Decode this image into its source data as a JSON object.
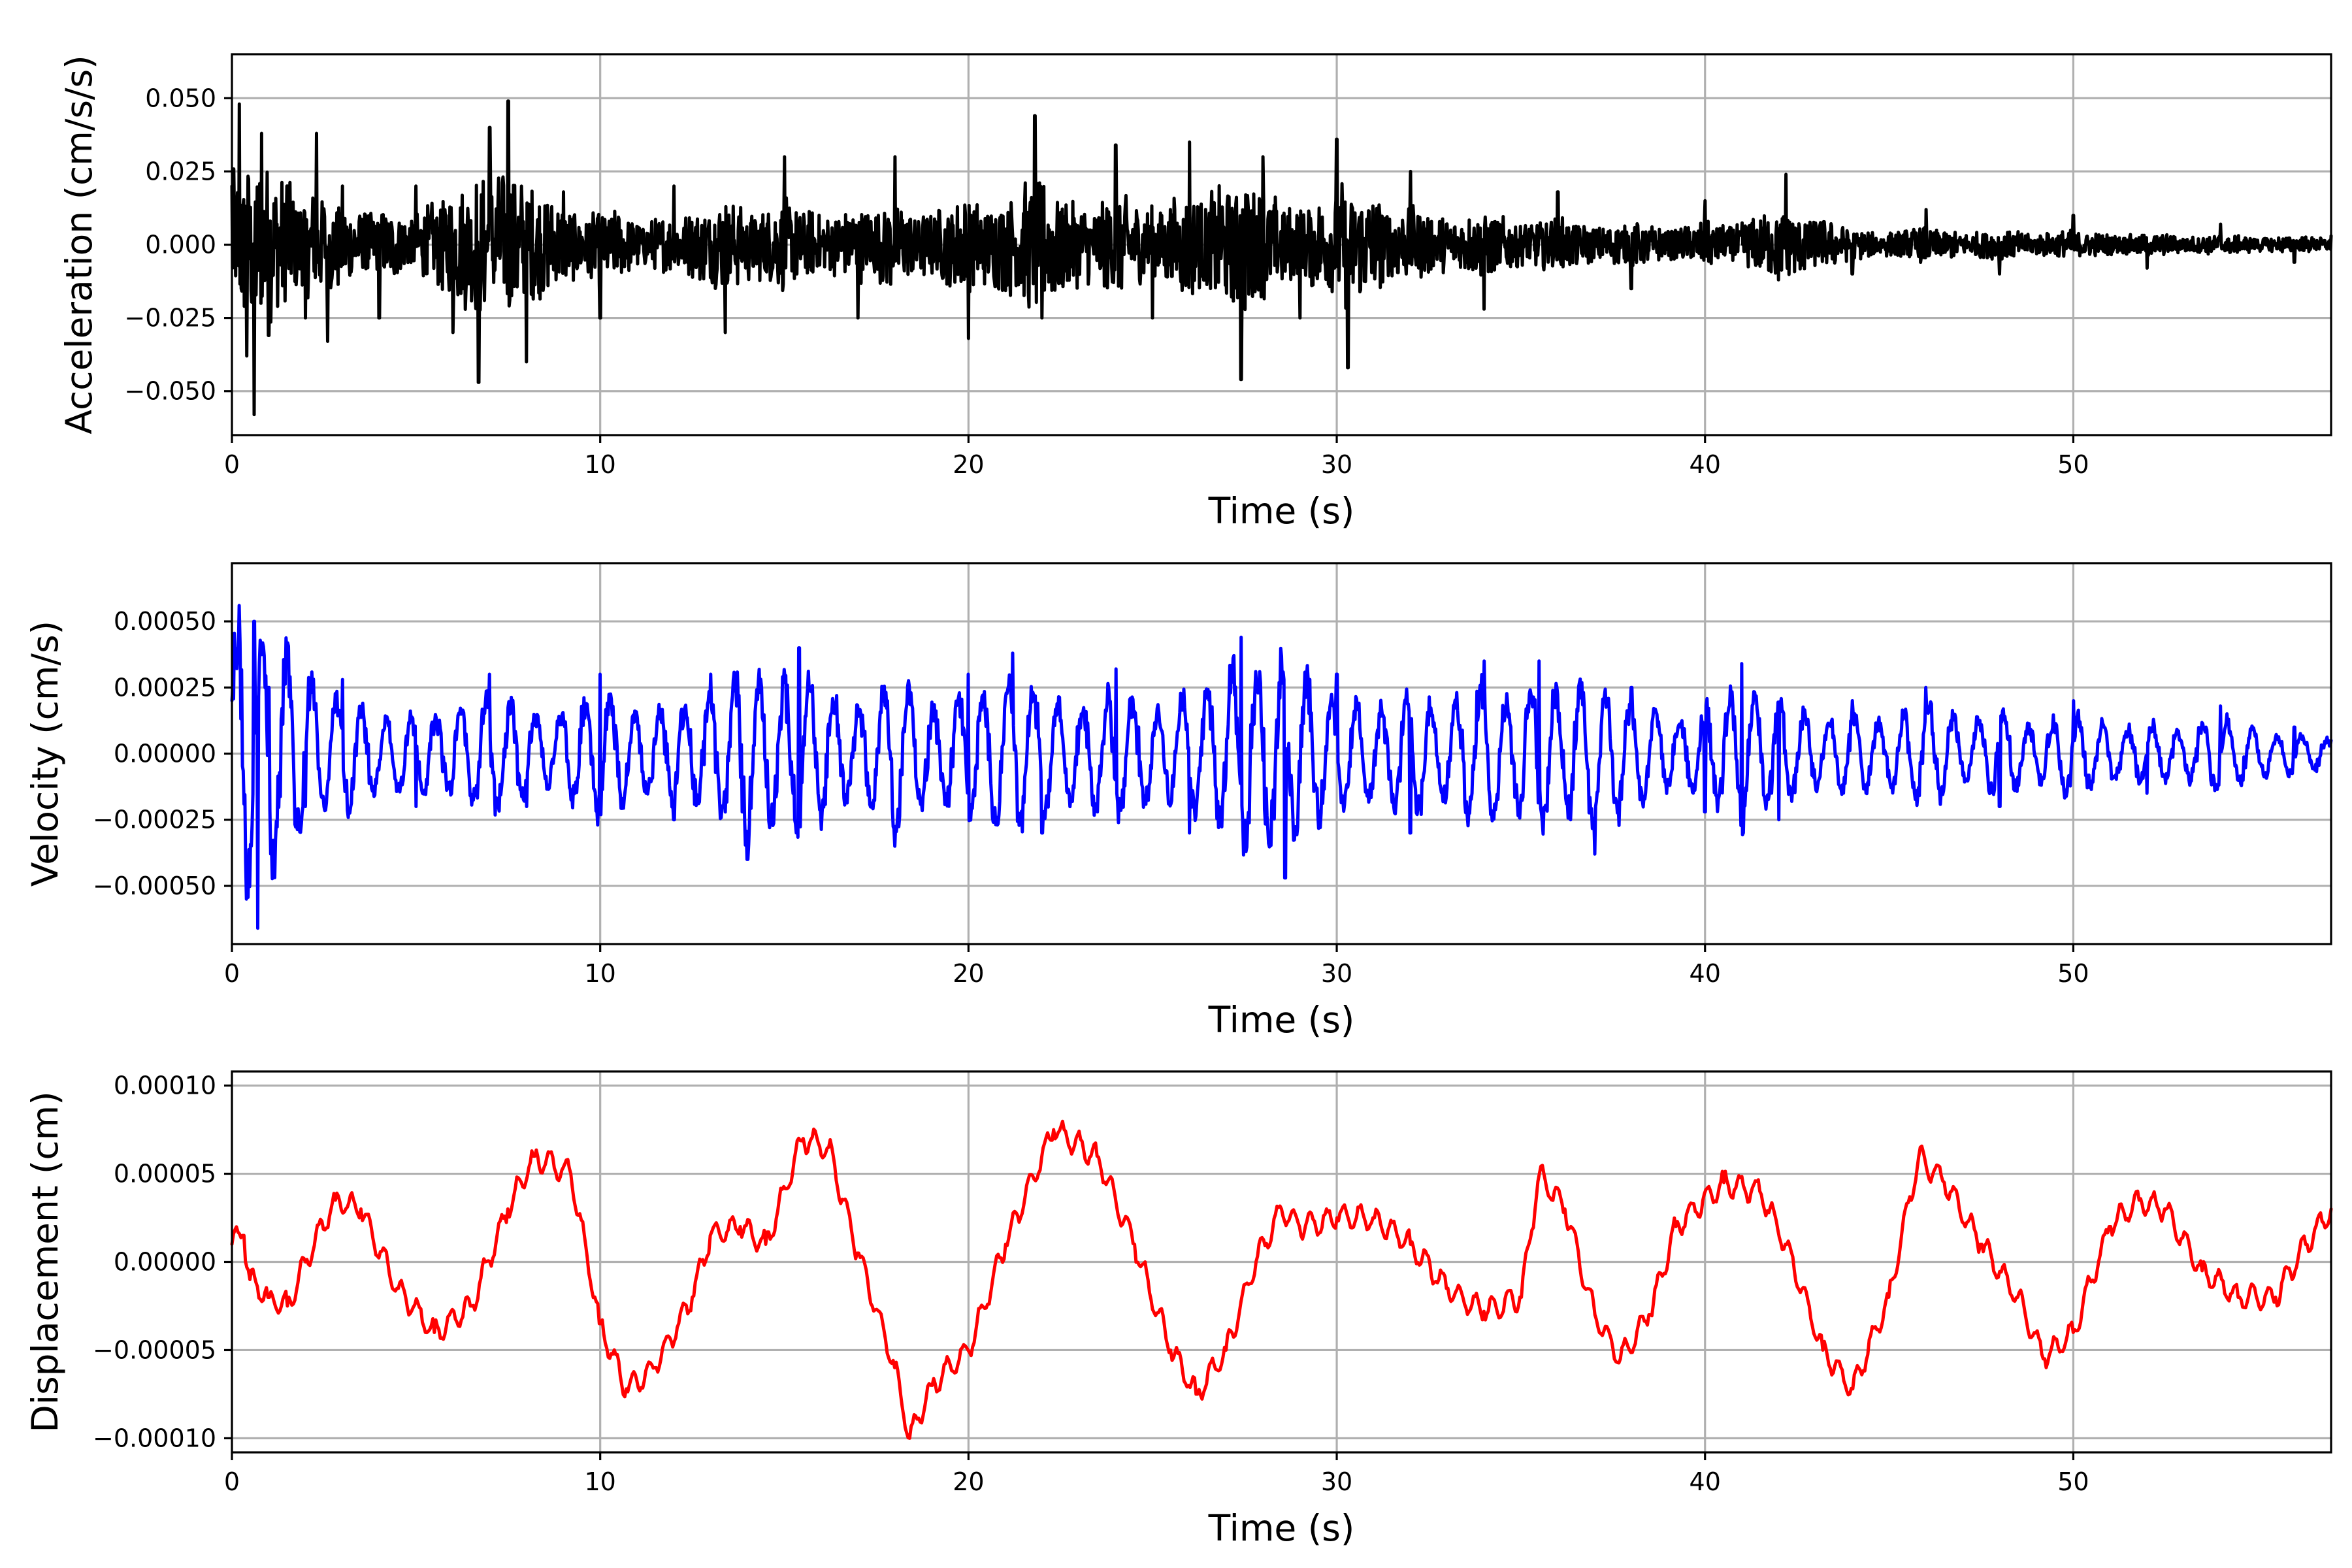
{
  "chart_data": [
    {
      "type": "line",
      "xlabel": "Time (s)",
      "ylabel": "Acceleration (cm/s/s)",
      "xlim": [
        0,
        57
      ],
      "ylim": [
        -0.065,
        0.065
      ],
      "xticks": [
        0,
        10,
        20,
        30,
        40,
        50
      ],
      "xtick_labels": [
        "0",
        "10",
        "20",
        "30",
        "40",
        "50"
      ],
      "yticks": [
        0.05,
        0.025,
        0.0,
        -0.025,
        -0.05
      ],
      "ytick_labels": [
        "0.050",
        "0.025",
        "0.000",
        "−0.025",
        "−0.050"
      ],
      "grid": true,
      "color": "#000000",
      "series": [
        {
          "x": [
            0,
            0.2,
            0.4,
            0.6,
            0.8,
            1.0,
            1.5,
            2.0,
            2.3,
            2.6,
            3,
            4,
            5,
            6,
            6.7,
            7,
            7.5,
            8,
            9,
            10,
            12,
            13.4,
            15,
            17,
            18,
            20,
            21.8,
            22,
            24,
            25,
            26,
            27.4,
            28,
            29,
            30,
            30.3,
            32,
            34,
            36,
            38,
            40,
            42,
            42.2,
            44,
            46,
            48,
            50,
            52,
            54,
            56,
            57
          ],
          "y": [
            0.02,
            0.048,
            -0.038,
            -0.058,
            0.038,
            -0.031,
            0.02,
            -0.025,
            0.038,
            -0.033,
            0.02,
            -0.025,
            0.02,
            -0.03,
            -0.047,
            0.04,
            0.049,
            -0.04,
            0.018,
            -0.025,
            0.02,
            -0.03,
            0.03,
            -0.025,
            0.03,
            -0.032,
            0.044,
            -0.025,
            0.034,
            -0.025,
            0.035,
            -0.046,
            0.03,
            -0.025,
            0.036,
            -0.042,
            0.025,
            -0.022,
            0.018,
            -0.015,
            0.015,
            -0.012,
            0.024,
            -0.01,
            0.012,
            -0.01,
            0.01,
            -0.008,
            0.007,
            -0.006,
            0.003
          ]
        }
      ]
    },
    {
      "type": "line",
      "xlabel": "Time (s)",
      "ylabel": "Velocity (cm/s)",
      "xlim": [
        0,
        57
      ],
      "ylim": [
        -0.00072,
        0.00072
      ],
      "xticks": [
        0,
        10,
        20,
        30,
        40,
        50
      ],
      "xtick_labels": [
        "0",
        "10",
        "20",
        "30",
        "40",
        "50"
      ],
      "yticks": [
        0.0005,
        0.00025,
        0.0,
        -0.00025,
        -0.0005
      ],
      "ytick_labels": [
        "0.00050",
        "0.00025",
        "0.00000",
        "−0.00025",
        "−0.00050"
      ],
      "grid": true,
      "color": "#0000ff",
      "series": [
        {
          "x": [
            0,
            0.2,
            0.4,
            0.6,
            0.7,
            1,
            2,
            3,
            5,
            7,
            8,
            10,
            12,
            13,
            14,
            15.4,
            18,
            20,
            21.2,
            22,
            24,
            26,
            27.4,
            28.6,
            30,
            32,
            34,
            35.5,
            37,
            38,
            40,
            41,
            42,
            44,
            46,
            48,
            50,
            52,
            54,
            56,
            57
          ],
          "y": [
            0.0002,
            0.00056,
            -0.00055,
            0.0005,
            -0.00066,
            0.00025,
            -0.0002,
            0.00028,
            -0.0002,
            0.0003,
            -0.0002,
            0.0003,
            -0.00025,
            0.0003,
            -0.0004,
            0.0004,
            -0.00035,
            0.0003,
            0.00038,
            -0.0003,
            0.00032,
            -0.0003,
            0.00044,
            -0.00047,
            0.0003,
            -0.0003,
            0.00035,
            0.00035,
            -0.00038,
            0.00025,
            -0.00022,
            0.00034,
            -0.00025,
            0.0002,
            0.00025,
            -0.0002,
            0.0002,
            -0.00015,
            0.00018,
            0.0001,
            5e-05
          ]
        }
      ]
    },
    {
      "type": "line",
      "xlabel": "Time (s)",
      "ylabel": "Displacement (cm)",
      "xlim": [
        0,
        57
      ],
      "ylim": [
        -0.000108,
        0.000108
      ],
      "xticks": [
        0,
        10,
        20,
        30,
        40,
        50
      ],
      "xtick_labels": [
        "0",
        "10",
        "20",
        "30",
        "40",
        "50"
      ],
      "yticks": [
        0.0001,
        5e-05,
        0.0,
        -5e-05,
        -0.0001
      ],
      "ytick_labels": [
        "0.00010",
        "0.00005",
        "0.00000",
        "−0.00005",
        "−0.00010"
      ],
      "grid": true,
      "color": "#ff0000",
      "series": [
        {
          "x": [
            0,
            0.3,
            0.5,
            1,
            1.5,
            2,
            2.8,
            3.5,
            4.5,
            5.5,
            6.5,
            7.5,
            8.2,
            9.2,
            10,
            10.7,
            11.5,
            12.5,
            13,
            13.8,
            14.5,
            15.5,
            16.2,
            17,
            18,
            18.4,
            19,
            20,
            21,
            22.3,
            23.5,
            24.5,
            25.5,
            26.2,
            27,
            27.8,
            28.5,
            29,
            30,
            31,
            32,
            33,
            34,
            35,
            35.5,
            36.2,
            37,
            37.7,
            38.5,
            39.2,
            40.5,
            41.5,
            42.2,
            43.2,
            44,
            45,
            45.8,
            46.5,
            47.5,
            48.5,
            49.2,
            50,
            51,
            51.8,
            52.5,
            53.5,
            54.5,
            55.5,
            56.3,
            57
          ],
          "y": [
            1e-05,
            1.5e-05,
            -1e-05,
            -2e-05,
            -2.5e-05,
            0.0,
            3.5e-05,
            3e-05,
            -1.5e-05,
            -4e-05,
            -2.5e-05,
            3e-05,
            6e-05,
            5e-05,
            -3.5e-05,
            -7.2e-05,
            -6e-05,
            -2e-05,
            1.5e-05,
            2e-05,
            1e-05,
            7e-05,
            6.5e-05,
            5e-06,
            -6e-05,
            -0.0001,
            -7e-05,
            -5e-05,
            1e-05,
            7.5e-05,
            6e-05,
            1e-05,
            -5e-05,
            -7.5e-05,
            -5e-05,
            0.0,
            3e-05,
            2e-05,
            2.5e-05,
            2.5e-05,
            1e-05,
            -1.5e-05,
            -2.8e-05,
            -2e-05,
            5e-05,
            3e-05,
            -3e-05,
            -5.5e-05,
            -3e-05,
            2e-05,
            4.5e-05,
            4e-05,
            1e-05,
            -5e-05,
            -7.2e-05,
            -2e-05,
            6e-05,
            4.5e-05,
            1e-05,
            -2e-05,
            -5.5e-05,
            -4e-05,
            2e-05,
            3.5e-05,
            3e-05,
            -5e-06,
            -2e-05,
            -2e-05,
            1e-05,
            3e-05
          ]
        }
      ]
    }
  ]
}
